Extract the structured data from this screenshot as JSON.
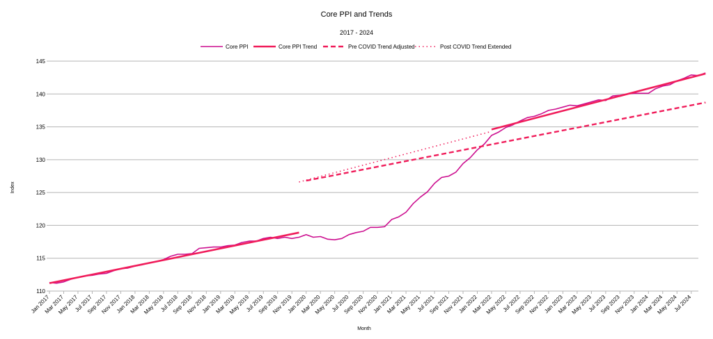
{
  "chart_data": {
    "type": "line",
    "title": "Core PPI and Trends",
    "subtitle": "2017 - 2024",
    "xlabel": "Month",
    "ylabel": "Index",
    "ylim": [
      110,
      145
    ],
    "yticks": [
      110,
      115,
      120,
      125,
      130,
      135,
      140,
      145
    ],
    "grid": true,
    "legend_position": "top",
    "x_start": "2017-01",
    "x_end": "2024-08",
    "xtick_labels": [
      "Jan 2017",
      "Mar 2017",
      "May 2017",
      "Jul 2017",
      "Sep 2017",
      "Nov 2017",
      "Jan 2018",
      "Mar 2018",
      "May 2018",
      "Jul 2018",
      "Sep 2018",
      "Nov 2018",
      "Jan 2019",
      "Mar 2019",
      "May 2019",
      "Jul 2019",
      "Sep 2019",
      "Nov 2019",
      "Jan 2020",
      "Mar 2020",
      "May 2020",
      "Jul 2020",
      "Sep 2020",
      "Nov 2020",
      "Jan 2021",
      "Mar 2021",
      "May 2021",
      "Jul 2021",
      "Sep 2021",
      "Nov 2021",
      "Jan 2022",
      "Mar 2022",
      "May 2022",
      "Jul 2022",
      "Sep 2022",
      "Nov 2022",
      "Jan 2023",
      "Mar 2023",
      "May 2023",
      "Jul 2023",
      "Sep 2023",
      "Nov 2023",
      "Jan 2024",
      "Mar 2024",
      "May 2024",
      "Jul 2024"
    ],
    "series": [
      {
        "name": "Core PPI",
        "color": "#cc0e8f",
        "style": "solid-thin",
        "start": "2017-01",
        "values": [
          111.3,
          111.2,
          111.4,
          111.8,
          112.1,
          112.3,
          112.4,
          112.6,
          112.7,
          113.1,
          113.4,
          113.5,
          113.8,
          114.0,
          114.3,
          114.5,
          114.8,
          115.3,
          115.6,
          115.6,
          115.7,
          116.5,
          116.6,
          116.7,
          116.7,
          116.9,
          117.0,
          117.4,
          117.6,
          117.6,
          118.0,
          118.2,
          118.0,
          118.2,
          118.0,
          118.2,
          118.6,
          118.2,
          118.3,
          117.9,
          117.8,
          118.0,
          118.6,
          118.9,
          119.1,
          119.7,
          119.7,
          119.8,
          120.9,
          121.3,
          122.0,
          123.3,
          124.3,
          125.1,
          126.4,
          127.3,
          127.5,
          128.1,
          129.4,
          130.3,
          131.5,
          132.4,
          133.7,
          134.2,
          134.9,
          135.3,
          135.9,
          136.4,
          136.6,
          137.0,
          137.5,
          137.7,
          138.0,
          138.3,
          138.2,
          138.5,
          138.8,
          139.1,
          139.0,
          139.7,
          139.8,
          140.0,
          140.1,
          140.1,
          140.1,
          140.8,
          141.2,
          141.4,
          142.0,
          142.4,
          142.9,
          142.8,
          143.2
        ]
      },
      {
        "name": "Core PPI Trend",
        "color": "#f01c5a",
        "style": "solid-thick",
        "segments": [
          {
            "x": [
              "2017-01",
              "2019-12"
            ],
            "y": [
              111.2,
              118.9
            ]
          },
          {
            "x": [
              "2022-03",
              "2024-09"
            ],
            "y": [
              134.6,
              143.1
            ]
          }
        ]
      },
      {
        "name": "Pre COVID Trend Adjusted",
        "color": "#f01c5a",
        "style": "dashed",
        "segments": [
          {
            "x": [
              "2020-01",
              "2024-09"
            ],
            "y": [
              126.8,
              138.7
            ]
          }
        ]
      },
      {
        "name": "Post COVID Trend Extended",
        "color": "#f01c5a",
        "style": "dotted",
        "segments": [
          {
            "x": [
              "2019-12",
              "2022-03"
            ],
            "y": [
              126.6,
              134.3
            ]
          }
        ]
      }
    ]
  }
}
